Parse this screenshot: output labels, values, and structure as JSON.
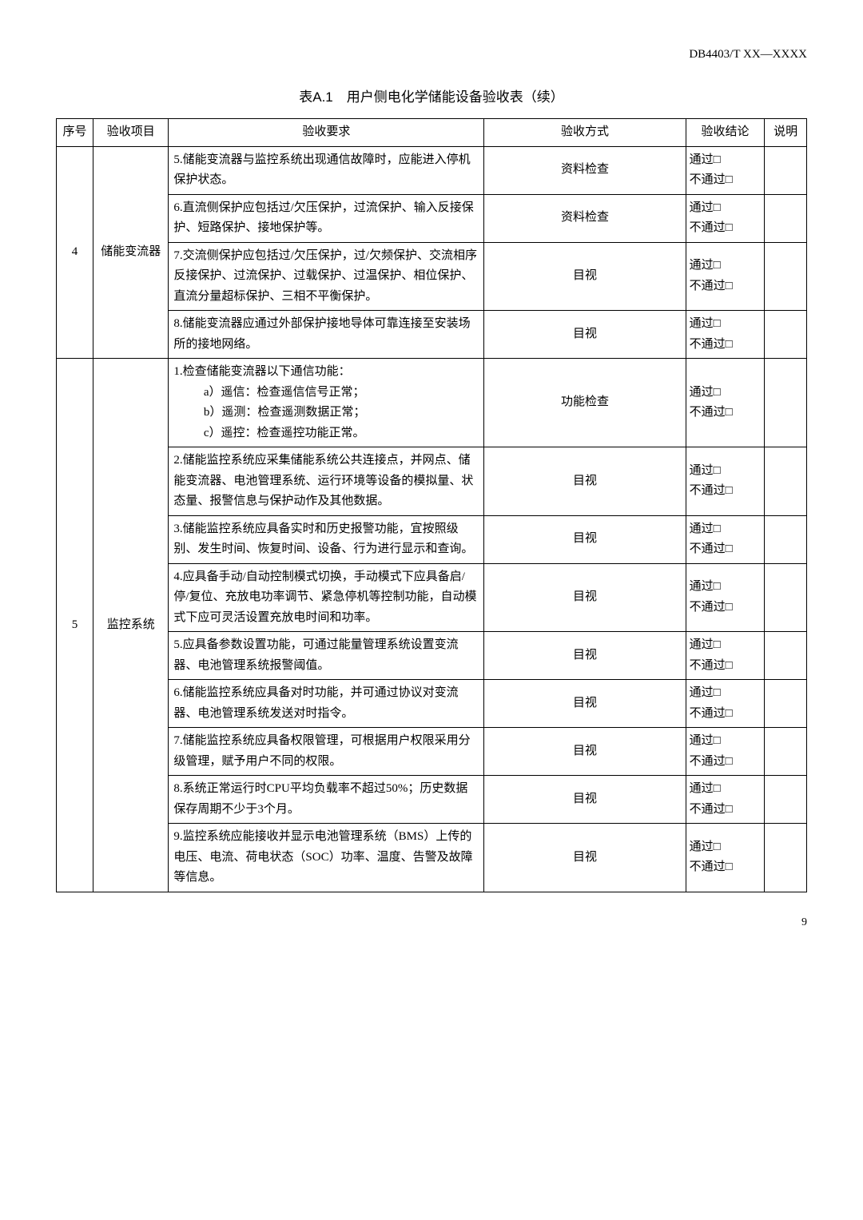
{
  "doc_code": "DB4403/T XX—XXXX",
  "table_title": "表A.1　用户侧电化学储能设备验收表（续）",
  "headers": {
    "seq": "序号",
    "item": "验收项目",
    "req": "验收要求",
    "method": "验收方式",
    "result": "验收结论",
    "note": "说明"
  },
  "result_pass": "通过□",
  "result_fail": "不通过□",
  "groups": [
    {
      "seq": "4",
      "item": "储能变流器",
      "rows": [
        {
          "req": "5.储能变流器与监控系统出现通信故障时，应能进入停机保护状态。",
          "method": "资料检查"
        },
        {
          "req": "6.直流侧保护应包括过/欠压保护，过流保护、输入反接保护、短路保护、接地保护等。",
          "method": "资料检查"
        },
        {
          "req": "7.交流侧保护应包括过/欠压保护，过/欠频保护、交流相序反接保护、过流保护、过载保护、过温保护、相位保护、直流分量超标保护、三相不平衡保护。",
          "method": "目视"
        },
        {
          "req": "8.储能变流器应通过外部保护接地导体可靠连接至安装场所的接地网络。",
          "method": "目视"
        }
      ]
    },
    {
      "seq": "5",
      "item": "监控系统",
      "rows": [
        {
          "req_main": "1.检查储能变流器以下通信功能：",
          "req_subs": [
            "a）遥信：检查遥信信号正常；",
            "b）遥测：检查遥测数据正常；",
            "c）遥控：检查遥控功能正常。"
          ],
          "method": "功能检查"
        },
        {
          "req": "2.储能监控系统应采集储能系统公共连接点，并网点、储能变流器、电池管理系统、运行环境等设备的模拟量、状态量、报警信息与保护动作及其他数据。",
          "method": "目视"
        },
        {
          "req": "3.储能监控系统应具备实时和历史报警功能，宜按照级别、发生时间、恢复时间、设备、行为进行显示和查询。",
          "method": "目视"
        },
        {
          "req": "4.应具备手动/自动控制模式切换，手动模式下应具备启/停/复位、充放电功率调节、紧急停机等控制功能，自动模式下应可灵活设置充放电时间和功率。",
          "method": "目视"
        },
        {
          "req": "5.应具备参数设置功能，可通过能量管理系统设置变流器、电池管理系统报警阈值。",
          "method": "目视"
        },
        {
          "req": "6.储能监控系统应具备对时功能，并可通过协议对变流器、电池管理系统发送对时指令。",
          "method": "目视"
        },
        {
          "req": "7.储能监控系统应具备权限管理，可根据用户权限采用分级管理，赋予用户不同的权限。",
          "method": "目视"
        },
        {
          "req": "8.系统正常运行时CPU平均负载率不超过50%；历史数据保存周期不少于3个月。",
          "method": "目视"
        },
        {
          "req": "9.监控系统应能接收并显示电池管理系统（BMS）上传的电压、电流、荷电状态（SOC）功率、温度、告警及故障等信息。",
          "method": "目视"
        }
      ]
    }
  ],
  "page_num": "9"
}
